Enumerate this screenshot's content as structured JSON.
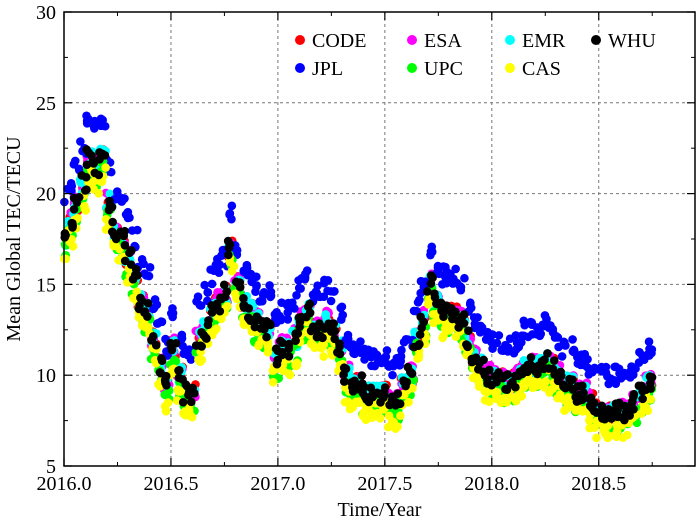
{
  "chart_data": {
    "type": "scatter",
    "title": "",
    "xlabel": "Time/Year",
    "ylabel": "Mean Global TEC/TECU",
    "xlim": [
      2016.0,
      2018.95
    ],
    "ylim": [
      5,
      30
    ],
    "x_ticks": [
      2016.0,
      2016.5,
      2017.0,
      2017.5,
      2018.0,
      2018.5
    ],
    "x_tick_labels": [
      "2016.0",
      "2016.5",
      "2017.0",
      "2017.5",
      "2018.0",
      "2018.5"
    ],
    "y_ticks": [
      5,
      10,
      15,
      20,
      25,
      30
    ],
    "y_tick_labels": [
      "5",
      "10",
      "15",
      "20",
      "25",
      "30"
    ],
    "grid": true,
    "legend_position": "top-right",
    "reference_x": [
      2016.0,
      2016.03,
      2016.06,
      2016.09,
      2016.12,
      2016.15,
      2016.18,
      2016.21,
      2016.24,
      2016.27,
      2016.3,
      2016.33,
      2016.36,
      2016.39,
      2016.42,
      2016.45,
      2016.48,
      2016.51,
      2016.54,
      2016.57,
      2016.6,
      2016.63,
      2016.66,
      2016.69,
      2016.72,
      2016.75,
      2016.78,
      2016.81,
      2016.84,
      2016.87,
      2016.9,
      2016.93,
      2016.96,
      2016.99,
      2017.02,
      2017.05,
      2017.08,
      2017.11,
      2017.14,
      2017.17,
      2017.2,
      2017.23,
      2017.26,
      2017.29,
      2017.32,
      2017.35,
      2017.38,
      2017.41,
      2017.44,
      2017.47,
      2017.5,
      2017.53,
      2017.56,
      2017.59,
      2017.62,
      2017.65,
      2017.68,
      2017.71,
      2017.74,
      2017.77,
      2017.8,
      2017.83,
      2017.86,
      2017.89,
      2017.92,
      2017.95,
      2017.98,
      2018.01,
      2018.04,
      2018.07,
      2018.1,
      2018.13,
      2018.16,
      2018.19,
      2018.22,
      2018.25,
      2018.28,
      2018.31,
      2018.34,
      2018.37,
      2018.4,
      2018.43,
      2018.46,
      2018.49,
      2018.52,
      2018.55,
      2018.58,
      2018.61,
      2018.64,
      2018.67,
      2018.7,
      2018.73,
      2018.75
    ],
    "series": [
      {
        "name": "CODE",
        "color": "#ff0000",
        "values": [
          17.5,
          18.5,
          19.5,
          20.5,
          22.0,
          21.5,
          22.0,
          19.5,
          18.0,
          17.5,
          16.5,
          15.5,
          14.0,
          13.5,
          12.0,
          10.5,
          9.5,
          11.5,
          10.0,
          9.0,
          9.0,
          12.0,
          12.5,
          13.5,
          14.0,
          14.5,
          17.0,
          15.0,
          14.0,
          13.5,
          13.0,
          12.5,
          12.5,
          11.0,
          11.5,
          11.5,
          12.0,
          13.0,
          13.5,
          12.5,
          12.5,
          13.0,
          12.5,
          11.5,
          10.0,
          9.5,
          9.5,
          9.0,
          9.0,
          9.0,
          9.0,
          8.5,
          8.5,
          9.5,
          10.0,
          12.0,
          13.0,
          15.0,
          14.0,
          13.5,
          13.5,
          13.5,
          13.0,
          12.0,
          11.0,
          10.5,
          10.0,
          9.8,
          9.8,
          9.6,
          9.7,
          10.0,
          10.5,
          10.5,
          10.5,
          10.8,
          10.5,
          10.0,
          9.5,
          9.5,
          9.0,
          9.0,
          8.5,
          8.0,
          8.0,
          8.0,
          8.0,
          8.0,
          8.0,
          8.5,
          9.0,
          9.5,
          9.5
        ]
      },
      {
        "name": "ESA",
        "color": "#ff00ff",
        "values": [
          17.6,
          18.6,
          19.6,
          20.7,
          22.1,
          21.6,
          22.1,
          19.6,
          18.1,
          17.6,
          16.6,
          15.6,
          14.1,
          13.6,
          12.1,
          10.6,
          9.6,
          11.6,
          10.1,
          9.1,
          9.1,
          12.1,
          12.6,
          13.6,
          14.1,
          14.6,
          17.2,
          15.1,
          14.1,
          13.6,
          13.1,
          12.6,
          12.6,
          11.1,
          11.6,
          11.6,
          12.1,
          13.1,
          13.6,
          12.6,
          12.6,
          13.1,
          12.6,
          11.6,
          10.1,
          9.6,
          9.6,
          9.1,
          9.1,
          9.1,
          9.1,
          8.6,
          8.6,
          9.6,
          10.1,
          12.1,
          13.1,
          15.1,
          14.1,
          13.6,
          13.6,
          13.6,
          13.1,
          12.1,
          11.1,
          10.6,
          10.1,
          9.9,
          9.9,
          9.7,
          9.8,
          10.1,
          10.6,
          10.6,
          10.6,
          10.9,
          10.6,
          10.1,
          9.6,
          9.6,
          9.1,
          9.1,
          8.6,
          8.1,
          8.1,
          8.1,
          8.1,
          8.1,
          8.1,
          8.6,
          9.1,
          9.6,
          9.6
        ]
      },
      {
        "name": "EMR",
        "color": "#00ffff",
        "values": [
          17.5,
          18.5,
          19.5,
          20.5,
          22.0,
          21.5,
          22.0,
          19.5,
          18.0,
          17.5,
          16.5,
          15.5,
          14.0,
          13.5,
          12.0,
          10.5,
          9.5,
          11.5,
          10.0,
          9.0,
          9.0,
          12.0,
          12.5,
          13.5,
          14.0,
          14.5,
          17.0,
          15.0,
          14.0,
          13.5,
          13.0,
          12.5,
          12.5,
          11.0,
          11.5,
          11.5,
          12.0,
          13.0,
          13.5,
          12.5,
          12.5,
          13.0,
          12.5,
          11.5,
          10.0,
          9.5,
          9.5,
          9.0,
          9.0,
          9.0,
          9.0,
          8.5,
          8.5,
          9.5,
          10.0,
          12.0,
          13.0,
          15.0,
          14.0,
          13.5,
          13.5,
          13.5,
          13.0,
          12.0,
          11.0,
          10.5,
          10.0,
          9.8,
          9.8,
          9.6,
          9.7,
          10.0,
          10.5,
          10.5,
          10.5,
          10.8,
          10.5,
          10.0,
          9.5,
          9.5,
          9.0,
          9.0,
          8.5,
          8.0,
          8.0,
          8.0,
          8.0,
          8.0,
          8.0,
          8.5,
          9.0,
          9.5,
          9.5
        ]
      },
      {
        "name": "WHU",
        "color": "#000000",
        "values": [
          17.5,
          18.5,
          19.5,
          20.5,
          22.0,
          21.5,
          22.0,
          19.5,
          18.0,
          17.5,
          16.5,
          15.5,
          14.0,
          13.5,
          12.0,
          10.5,
          9.5,
          11.5,
          10.0,
          9.0,
          9.0,
          12.0,
          12.5,
          13.5,
          14.0,
          14.5,
          17.0,
          15.0,
          14.0,
          13.5,
          13.0,
          12.5,
          12.5,
          11.0,
          11.5,
          11.5,
          12.0,
          13.0,
          13.5,
          12.5,
          12.5,
          13.0,
          12.5,
          11.5,
          10.0,
          9.5,
          9.5,
          9.0,
          9.0,
          9.0,
          9.0,
          8.5,
          8.5,
          9.5,
          10.0,
          12.0,
          13.0,
          15.0,
          14.0,
          13.5,
          13.5,
          13.5,
          13.0,
          12.0,
          11.0,
          10.5,
          10.0,
          9.8,
          9.8,
          9.6,
          9.7,
          10.0,
          10.5,
          10.5,
          10.5,
          10.8,
          10.5,
          10.0,
          9.5,
          9.5,
          9.0,
          9.0,
          8.5,
          8.0,
          8.0,
          8.0,
          8.0,
          8.0,
          8.0,
          8.5,
          9.0,
          9.5,
          9.5
        ]
      },
      {
        "name": "JPL",
        "color": "#0000ff",
        "values": [
          19.5,
          20.5,
          21.5,
          22.5,
          24.0,
          23.5,
          24.0,
          21.5,
          20.0,
          19.5,
          18.5,
          17.5,
          16.0,
          15.5,
          14.0,
          12.5,
          11.5,
          13.5,
          12.0,
          11.0,
          11.0,
          14.0,
          14.5,
          15.5,
          16.0,
          16.5,
          19.0,
          17.0,
          16.0,
          15.5,
          15.0,
          14.5,
          14.5,
          13.0,
          13.5,
          13.5,
          14.0,
          15.0,
          15.5,
          14.5,
          14.5,
          15.0,
          14.5,
          13.5,
          12.0,
          11.5,
          11.5,
          11.0,
          11.0,
          11.0,
          11.0,
          10.5,
          10.5,
          11.5,
          12.0,
          14.0,
          15.0,
          17.0,
          16.0,
          15.5,
          15.5,
          15.5,
          15.0,
          14.0,
          13.0,
          12.5,
          12.0,
          11.8,
          11.8,
          11.6,
          11.7,
          12.0,
          12.5,
          12.5,
          12.5,
          12.8,
          12.5,
          12.0,
          11.5,
          11.5,
          11.0,
          11.0,
          10.5,
          10.0,
          10.0,
          10.0,
          10.0,
          10.0,
          10.0,
          10.5,
          11.0,
          11.5,
          11.5
        ]
      },
      {
        "name": "UPC",
        "color": "#00ff00",
        "values": [
          16.8,
          17.8,
          18.8,
          19.8,
          21.3,
          20.8,
          21.3,
          18.8,
          17.3,
          16.8,
          15.8,
          14.8,
          13.3,
          12.8,
          11.3,
          9.8,
          8.8,
          10.8,
          9.3,
          8.3,
          8.3,
          11.3,
          11.8,
          12.8,
          13.3,
          13.8,
          16.3,
          14.3,
          13.3,
          12.8,
          12.3,
          11.8,
          11.8,
          10.3,
          10.8,
          10.8,
          11.3,
          12.3,
          12.8,
          11.8,
          11.8,
          12.3,
          11.8,
          10.8,
          9.3,
          8.8,
          8.8,
          8.3,
          8.3,
          8.3,
          8.3,
          7.8,
          7.8,
          8.8,
          9.3,
          11.3,
          12.3,
          14.3,
          13.3,
          12.8,
          12.8,
          12.8,
          12.3,
          11.3,
          10.3,
          9.8,
          9.3,
          9.1,
          9.1,
          8.9,
          9.0,
          9.3,
          9.8,
          9.8,
          9.8,
          10.1,
          9.8,
          9.3,
          8.8,
          8.8,
          8.3,
          8.3,
          7.8,
          7.3,
          7.3,
          7.3,
          7.3,
          7.3,
          7.3,
          7.8,
          8.3,
          8.8,
          8.8
        ]
      },
      {
        "name": "CAS",
        "color": "#ffff00",
        "values": [
          16.5,
          17.5,
          18.5,
          19.5,
          21.0,
          20.5,
          21.0,
          18.5,
          17.0,
          16.5,
          15.5,
          14.5,
          13.0,
          12.5,
          11.0,
          9.5,
          8.5,
          10.5,
          9.0,
          8.0,
          8.0,
          11.0,
          11.5,
          12.5,
          13.0,
          13.5,
          16.0,
          14.0,
          13.0,
          12.5,
          12.0,
          11.5,
          11.5,
          10.0,
          10.5,
          10.5,
          11.0,
          12.0,
          12.5,
          11.5,
          11.5,
          12.0,
          11.5,
          10.5,
          9.0,
          8.5,
          8.5,
          8.0,
          8.0,
          8.0,
          8.0,
          7.5,
          7.5,
          8.5,
          9.0,
          11.0,
          12.0,
          14.0,
          13.0,
          12.5,
          12.5,
          12.5,
          12.0,
          11.0,
          10.0,
          9.5,
          9.0,
          8.8,
          8.8,
          8.6,
          8.7,
          9.0,
          9.5,
          9.5,
          9.5,
          9.8,
          9.5,
          9.0,
          8.5,
          8.5,
          8.0,
          8.0,
          7.5,
          7.0,
          7.0,
          7.0,
          7.0,
          7.0,
          7.0,
          7.5,
          8.0,
          8.5,
          8.5
        ]
      }
    ],
    "legend": [
      {
        "name": "CODE",
        "color": "#ff0000"
      },
      {
        "name": "ESA",
        "color": "#ff00ff"
      },
      {
        "name": "EMR",
        "color": "#00ffff"
      },
      {
        "name": "WHU",
        "color": "#000000"
      },
      {
        "name": "JPL",
        "color": "#0000ff"
      },
      {
        "name": "UPC",
        "color": "#00ff00"
      },
      {
        "name": "CAS",
        "color": "#ffff00"
      }
    ]
  }
}
